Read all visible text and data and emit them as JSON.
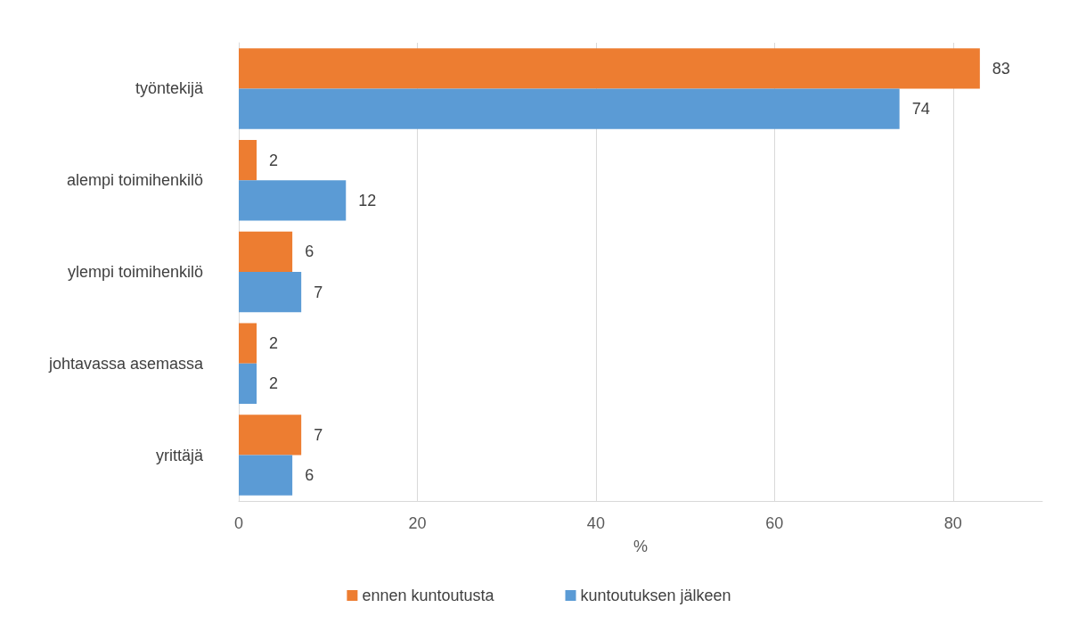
{
  "chart_data": {
    "type": "bar",
    "orientation": "horizontal",
    "xlabel": "%",
    "categories": [
      "työntekijä",
      "alempi toimihenkilö",
      "ylempi toimihenkilö",
      "johtavassa asemassa",
      "yrittäjä"
    ],
    "series": [
      {
        "name": "ennen kuntoutusta",
        "color": "#ed7d31",
        "values": [
          83,
          2,
          6,
          2,
          7
        ]
      },
      {
        "name": "kuntoutuksen jälkeen",
        "color": "#5b9bd5",
        "values": [
          74,
          12,
          7,
          2,
          6
        ]
      }
    ],
    "xlim": [
      0,
      90
    ],
    "xticks": [
      0,
      20,
      40,
      60,
      80
    ],
    "grid": "x",
    "legend": "bottom",
    "data_labels": true
  }
}
